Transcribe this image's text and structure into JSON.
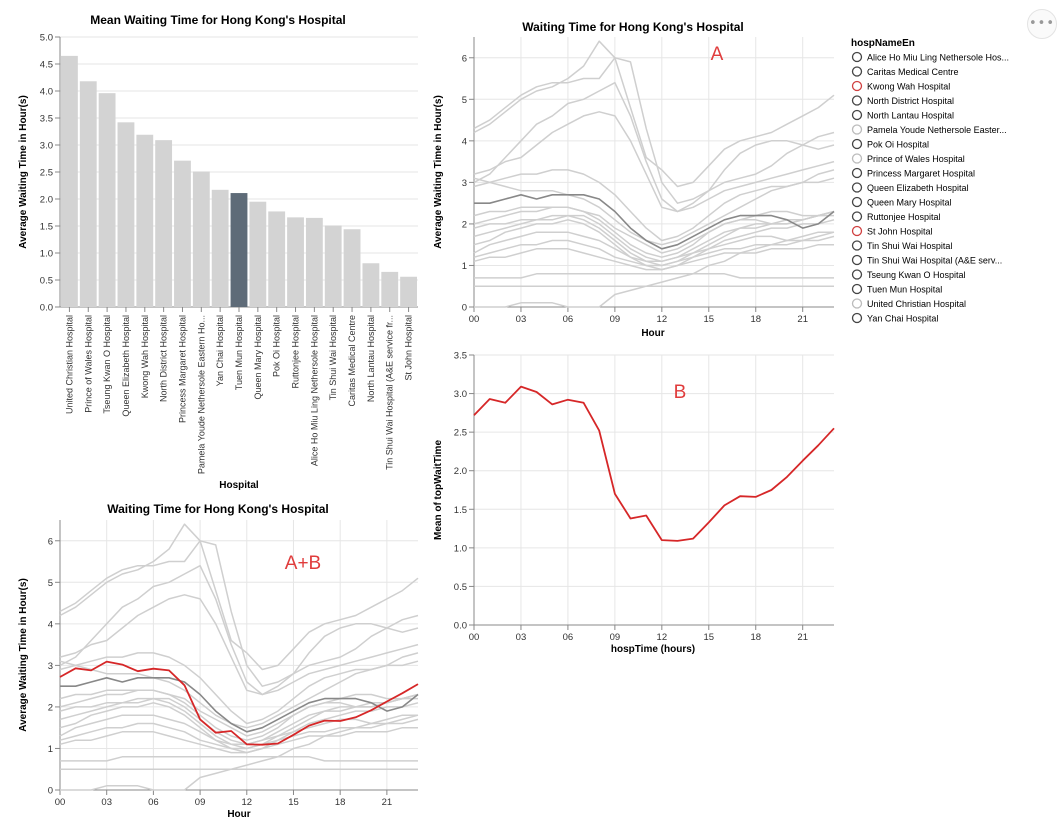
{
  "menu": {
    "label": "•••"
  },
  "colors": {
    "bar": "#d3d3d3",
    "bar_highlight": "#5e6b78",
    "line": "#cfcfcf",
    "line_highlight": "#888888",
    "red": "#d62728",
    "red_text": "#e03c3c"
  },
  "legend": {
    "title": "hospNameEn",
    "items": [
      {
        "label": "Alice Ho Miu Ling Nethersole Hos...",
        "symbol": "#444444"
      },
      {
        "label": "Caritas Medical Centre",
        "symbol": "#444444"
      },
      {
        "label": "Kwong Wah Hospital",
        "symbol": "#d04040"
      },
      {
        "label": "North District Hospital",
        "symbol": "#444444"
      },
      {
        "label": "North Lantau Hospital",
        "symbol": "#444444"
      },
      {
        "label": "Pamela Youde Nethersole Easter...",
        "symbol": "#bbbbbb"
      },
      {
        "label": "Pok Oi Hospital",
        "symbol": "#444444"
      },
      {
        "label": "Prince of Wales Hospital",
        "symbol": "#bbbbbb"
      },
      {
        "label": "Princess Margaret Hospital",
        "symbol": "#444444"
      },
      {
        "label": "Queen Elizabeth Hospital",
        "symbol": "#444444"
      },
      {
        "label": "Queen Mary Hospital",
        "symbol": "#444444"
      },
      {
        "label": "Ruttonjee Hospital",
        "symbol": "#444444"
      },
      {
        "label": "St John Hospital",
        "symbol": "#d04040"
      },
      {
        "label": "Tin Shui Wai Hospital",
        "symbol": "#444444"
      },
      {
        "label": "Tin Shui Wai Hospital    (A&E serv...",
        "symbol": "#444444"
      },
      {
        "label": "Tseung Kwan O Hospital",
        "symbol": "#444444"
      },
      {
        "label": "Tuen Mun Hospital",
        "symbol": "#444444"
      },
      {
        "label": "United Christian Hospital",
        "symbol": "#bbbbbb"
      },
      {
        "label": "Yan Chai Hospital",
        "symbol": "#444444"
      }
    ]
  },
  "chart_data": [
    {
      "id": "bar",
      "type": "bar",
      "title": "Mean Waiting Time for Hong Kong's Hospital",
      "xlabel": "Hospital",
      "ylabel": "Average Waiting Time in Hour(s)",
      "ylim": [
        0,
        5
      ],
      "yticks": [
        "0.0",
        "0.5",
        "1.0",
        "1.5",
        "2.0",
        "2.5",
        "3.0",
        "3.5",
        "4.0",
        "4.5",
        "5.0"
      ],
      "categories": [
        "United Christian Hospital",
        "Prince of Wales Hospital",
        "Tseung Kwan O Hospital",
        "Queen Elizabeth Hospital",
        "Kwong Wah Hospital",
        "North District Hospital",
        "Princess Margaret Hospital",
        "Pamela Youde Nethersole Eastern Ho...",
        "Yan Chai Hospital",
        "Tuen Mun Hospital",
        "Queen Mary Hospital",
        "Pok Oi Hospital",
        "Ruttonjee Hospital",
        "Alice Ho Miu Ling Nethersole Hospital",
        "Tin Shui Wai Hospital",
        "Caritas Medical Centre",
        "North Lantau Hospital",
        "Tin Shui Wai Hospital   (A&E service fr...",
        "St John Hospital"
      ],
      "values": [
        4.65,
        4.18,
        3.96,
        3.42,
        3.19,
        3.09,
        2.71,
        2.51,
        2.17,
        2.11,
        1.95,
        1.77,
        1.66,
        1.65,
        1.51,
        1.44,
        0.81,
        0.65,
        0.56
      ],
      "highlight": "Tuen Mun Hospital",
      "grid": true
    },
    {
      "id": "lineA",
      "type": "line",
      "title": "Waiting Time for Hong Kong's Hospital",
      "annotation": "A",
      "xlabel": "Hour",
      "ylabel": "Average Waiting Time in Hour(s)",
      "xlim": [
        0,
        23
      ],
      "ylim": [
        0,
        6.5
      ],
      "xticks": [
        "00",
        "03",
        "06",
        "09",
        "12",
        "15",
        "18",
        "21"
      ],
      "yticks": [
        "0",
        "1",
        "2",
        "3",
        "4",
        "5",
        "6"
      ],
      "x": [
        0,
        1,
        2,
        3,
        4,
        5,
        6,
        7,
        8,
        9,
        10,
        11,
        12,
        13,
        14,
        15,
        16,
        17,
        18,
        19,
        20,
        21,
        22,
        23
      ],
      "series": [
        {
          "values": [
            4.2,
            4.4,
            4.7,
            5.0,
            5.2,
            5.3,
            5.5,
            5.8,
            6.4,
            6.0,
            4.8,
            3.6,
            3.3,
            2.9,
            3.0,
            3.4,
            3.8,
            4.0,
            4.1,
            4.2,
            4.4,
            4.6,
            4.8,
            5.1
          ]
        },
        {
          "values": [
            4.3,
            4.5,
            4.8,
            5.1,
            5.3,
            5.4,
            5.4,
            5.5,
            5.5,
            6.0,
            5.9,
            4.3,
            3.0,
            2.5,
            2.6,
            2.8,
            3.0,
            3.1,
            3.2,
            3.4,
            3.7,
            3.9,
            4.1,
            4.2
          ]
        },
        {
          "values": [
            3.0,
            3.2,
            3.6,
            4.0,
            4.4,
            4.6,
            4.9,
            5.0,
            5.2,
            5.4,
            4.6,
            3.5,
            2.6,
            2.3,
            2.5,
            2.8,
            3.3,
            3.7,
            3.9,
            4.0,
            4.0,
            3.9,
            3.8,
            3.9
          ]
        },
        {
          "values": [
            3.2,
            3.3,
            3.5,
            3.6,
            3.9,
            4.2,
            4.4,
            4.6,
            4.7,
            4.6,
            4.0,
            3.2,
            2.4,
            2.3,
            2.4,
            2.6,
            2.8,
            2.9,
            3.0,
            3.1,
            3.2,
            3.3,
            3.4,
            3.5
          ]
        },
        {
          "values": [
            2.9,
            3.0,
            3.1,
            3.2,
            3.2,
            3.3,
            3.3,
            3.2,
            3.0,
            2.7,
            2.3,
            1.9,
            1.6,
            1.7,
            1.9,
            2.2,
            2.5,
            2.7,
            2.8,
            2.9,
            2.9,
            3.0,
            3.2,
            3.3
          ]
        },
        {
          "values": [
            3.1,
            3.0,
            2.9,
            2.8,
            2.8,
            2.8,
            2.7,
            2.6,
            2.4,
            2.1,
            1.8,
            1.6,
            1.5,
            1.6,
            1.8,
            2.0,
            2.2,
            2.4,
            2.6,
            2.8,
            2.9,
            3.0,
            3.0,
            3.1
          ]
        },
        {
          "values": [
            2.2,
            2.3,
            2.3,
            2.4,
            2.4,
            2.4,
            2.4,
            2.3,
            2.1,
            1.8,
            1.5,
            1.3,
            1.2,
            1.3,
            1.5,
            1.8,
            2.0,
            2.1,
            2.1,
            2.0,
            2.0,
            2.1,
            2.2,
            2.3
          ]
        },
        {
          "values": [
            2.0,
            2.1,
            2.2,
            2.3,
            2.3,
            2.4,
            2.4,
            2.3,
            2.2,
            1.9,
            1.7,
            1.5,
            1.3,
            1.4,
            1.6,
            1.8,
            2.0,
            2.1,
            2.2,
            2.3,
            2.3,
            2.2,
            2.2,
            2.3
          ]
        },
        {
          "values": [
            1.9,
            2.0,
            2.0,
            2.1,
            2.1,
            2.2,
            2.2,
            2.1,
            1.9,
            1.6,
            1.3,
            1.1,
            1.0,
            1.1,
            1.3,
            1.5,
            1.7,
            1.9,
            2.0,
            2.0,
            2.1,
            2.1,
            2.2,
            2.2
          ]
        },
        {
          "values": [
            1.7,
            1.8,
            1.9,
            2.0,
            2.1,
            2.1,
            2.2,
            2.2,
            2.0,
            1.7,
            1.4,
            1.2,
            1.1,
            1.2,
            1.4,
            1.6,
            1.8,
            1.9,
            1.9,
            2.0,
            2.0,
            2.1,
            2.2,
            2.3
          ]
        },
        {
          "values": [
            1.5,
            1.6,
            1.8,
            1.9,
            2.0,
            2.0,
            2.1,
            2.0,
            1.8,
            1.5,
            1.2,
            1.0,
            0.9,
            1.0,
            1.2,
            1.4,
            1.6,
            1.7,
            1.8,
            1.9,
            1.9,
            2.0,
            2.0,
            2.1
          ]
        },
        {
          "values": [
            1.3,
            1.5,
            1.6,
            1.7,
            1.8,
            1.8,
            1.8,
            1.7,
            1.6,
            1.4,
            1.2,
            1.1,
            1.1,
            1.2,
            1.3,
            1.4,
            1.5,
            1.6,
            1.7,
            1.7,
            1.6,
            1.6,
            1.7,
            1.8
          ]
        },
        {
          "values": [
            1.2,
            1.3,
            1.4,
            1.5,
            1.5,
            1.6,
            1.6,
            1.5,
            1.4,
            1.2,
            1.1,
            1.0,
            1.0,
            1.1,
            1.2,
            1.3,
            1.4,
            1.4,
            1.5,
            1.5,
            1.5,
            1.6,
            1.6,
            1.7
          ]
        },
        {
          "values": [
            1.1,
            1.2,
            1.2,
            1.3,
            1.4,
            1.4,
            1.4,
            1.3,
            1.2,
            1.1,
            1.0,
            0.9,
            0.9,
            1.0,
            1.1,
            1.2,
            1.3,
            1.3,
            1.3,
            1.4,
            1.4,
            1.4,
            1.5,
            1.5
          ]
        },
        {
          "values": [
            0.7,
            0.7,
            0.7,
            0.7,
            0.8,
            0.8,
            0.8,
            0.8,
            0.8,
            0.8,
            0.8,
            0.8,
            0.8,
            0.8,
            0.8,
            0.8,
            0.8,
            0.7,
            0.7,
            0.7,
            0.7,
            0.7,
            0.7,
            0.7
          ]
        },
        {
          "values": [
            0.5,
            0.5,
            0.5,
            0.5,
            0.5,
            0.5,
            0.5,
            0.5,
            0.5,
            0.5,
            0.5,
            0.5,
            0.5,
            0.5,
            0.5,
            0.5,
            0.5,
            0.5,
            0.5,
            0.5,
            0.5,
            0.5,
            0.5,
            0.5
          ]
        },
        {
          "values": [
            0.0,
            0.0,
            0.0,
            0.1,
            0.1,
            0.1,
            0.0,
            0.0,
            0.0,
            0.3,
            0.4,
            0.5,
            0.6,
            0.7,
            0.8,
            1.0,
            1.1,
            1.3,
            1.4,
            1.5,
            1.6,
            1.7,
            1.8,
            1.8
          ]
        },
        {
          "values": [
            2.5,
            2.5,
            2.6,
            2.7,
            2.6,
            2.7,
            2.7,
            2.7,
            2.6,
            2.3,
            1.9,
            1.6,
            1.4,
            1.5,
            1.7,
            1.9,
            2.1,
            2.2,
            2.2,
            2.2,
            2.1,
            1.9,
            2.0,
            2.3
          ],
          "highlight": true
        }
      ]
    },
    {
      "id": "lineB",
      "type": "line",
      "annotation": "B",
      "xlabel": "hospTime (hours)",
      "ylabel": "Mean of topWaitTime",
      "xlim": [
        0,
        23
      ],
      "ylim": [
        0,
        3.5
      ],
      "xticks": [
        "00",
        "03",
        "06",
        "09",
        "12",
        "15",
        "18",
        "21"
      ],
      "yticks": [
        "0.0",
        "0.5",
        "1.0",
        "1.5",
        "2.0",
        "2.5",
        "3.0",
        "3.5"
      ],
      "x": [
        0,
        1,
        2,
        3,
        4,
        5,
        6,
        7,
        8,
        9,
        10,
        11,
        12,
        13,
        14,
        15,
        16,
        17,
        18,
        19,
        20,
        21,
        22,
        23
      ],
      "series": [
        {
          "values": [
            2.72,
            2.93,
            2.88,
            3.09,
            3.02,
            2.86,
            2.92,
            2.88,
            2.52,
            1.7,
            1.38,
            1.42,
            1.1,
            1.09,
            1.12,
            1.33,
            1.55,
            1.67,
            1.66,
            1.75,
            1.92,
            2.13,
            2.33,
            2.55
          ],
          "color": "red"
        }
      ]
    },
    {
      "id": "lineAB",
      "type": "line",
      "title": "Waiting Time for Hong Kong's Hospital",
      "annotation": "A+B",
      "xlabel": "Hour",
      "ylabel": "Average Waiting Time in Hour(s)",
      "xlim": [
        0,
        23
      ],
      "ylim": [
        0,
        6.5
      ],
      "xticks": [
        "00",
        "03",
        "06",
        "09",
        "12",
        "15",
        "18",
        "21"
      ],
      "yticks": [
        "0",
        "1",
        "2",
        "3",
        "4",
        "5",
        "6"
      ],
      "combined": true
    }
  ]
}
